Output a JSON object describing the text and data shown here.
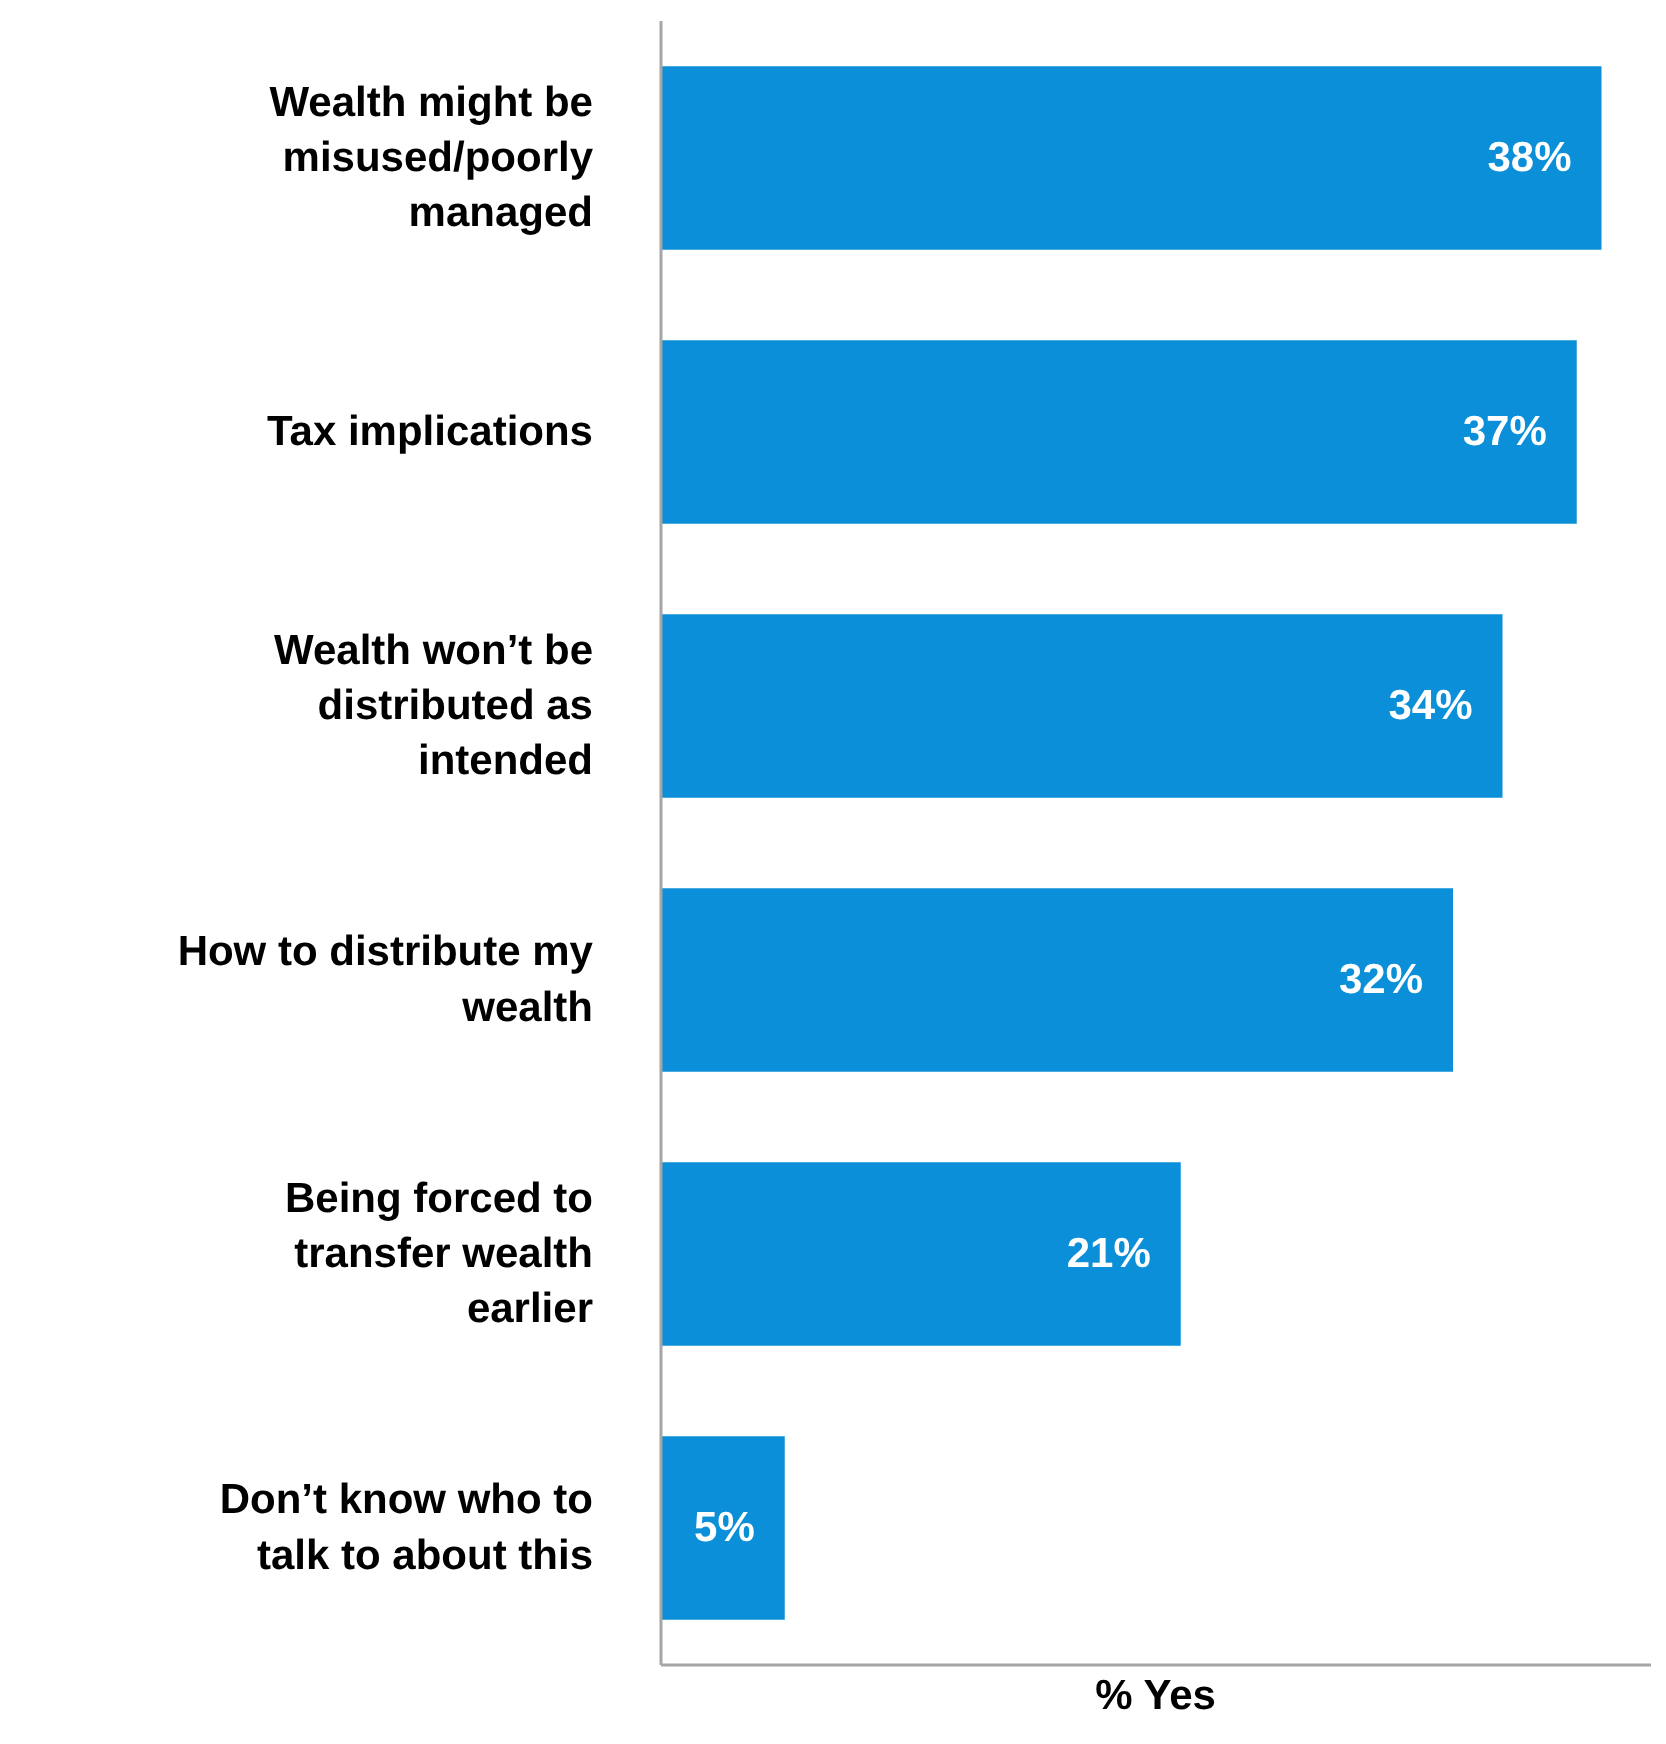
{
  "chart_data": {
    "type": "bar",
    "orientation": "horizontal",
    "xlabel": "% Yes",
    "categories": [
      "Wealth might be misused/poorly managed",
      "Tax implications",
      "Wealth won’t be distributed as intended",
      "How to distribute my wealth",
      "Being forced to transfer wealth earlier",
      "Don’t know who to talk to about this"
    ],
    "values": [
      38,
      37,
      34,
      32,
      21,
      5
    ],
    "value_labels": [
      "38%",
      "37%",
      "34%",
      "32%",
      "21%",
      "5%"
    ],
    "color": "#0b8fd8",
    "xlim": [
      0,
      40
    ],
    "tick_labels": "y"
  }
}
